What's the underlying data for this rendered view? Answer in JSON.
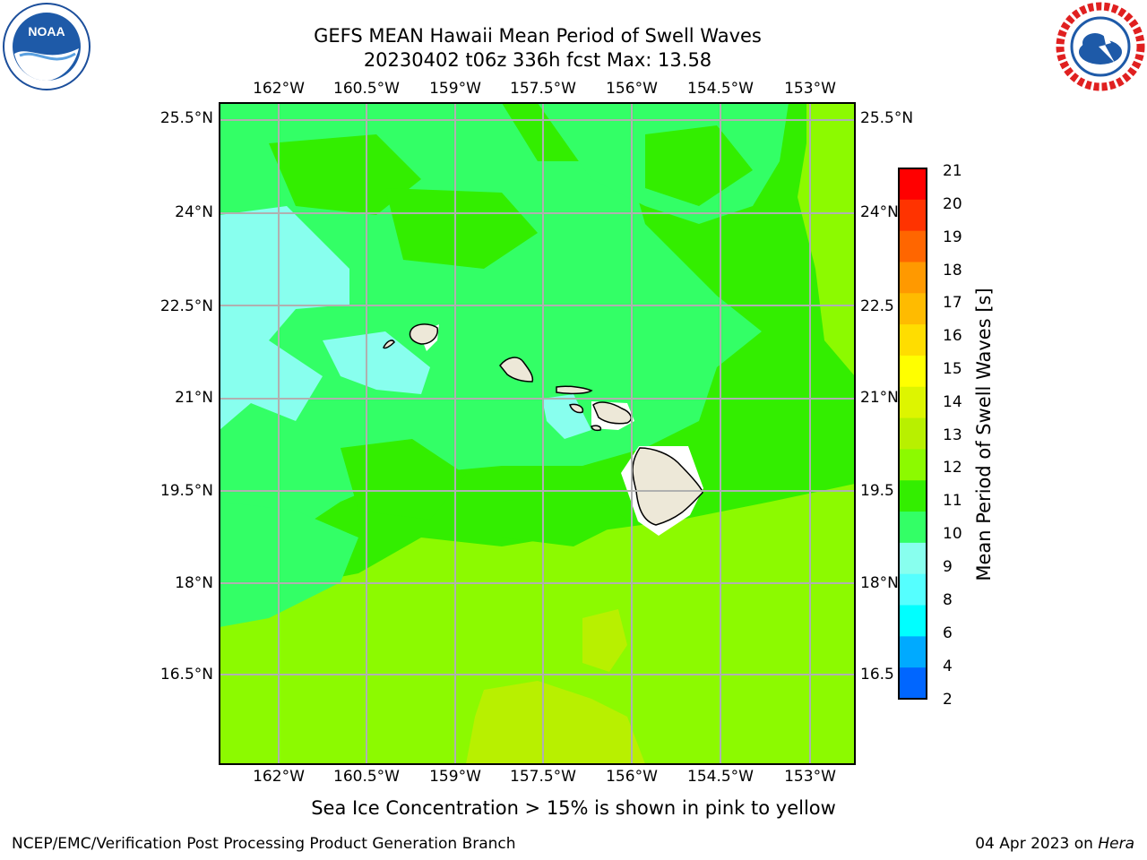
{
  "header": {
    "title_line1": "GEFS MEAN Hawaii Mean Period of Swell Waves",
    "title_line2": "20230402 t06z 336h fcst   Max: 13.58"
  },
  "logos": {
    "left": {
      "icon": "noaa-logo",
      "text": "NOAA"
    },
    "right": {
      "icon": "nws-logo",
      "text": "NATIONAL WEATHER SERVICE"
    }
  },
  "map": {
    "lon_labels": [
      "162°W",
      "160.5°W",
      "159°W",
      "157.5°W",
      "156°W",
      "154.5°W",
      "153°W"
    ],
    "lat_labels_left": [
      "25.5°N",
      "24°N",
      "22.5°N",
      "21°N",
      "19.5°N",
      "18°N",
      "16.5°N"
    ],
    "lat_labels_right": [
      "25.5°N",
      "24°N",
      "22.5",
      "21°N",
      "19.5",
      "18°N",
      "16.5"
    ],
    "land_color": "#ede8d8",
    "grid_color": "#b0b0b0"
  },
  "colorbar": {
    "label": "Mean Period of Swell Waves [s]",
    "ticks": [
      "21",
      "20",
      "19",
      "18",
      "17",
      "16",
      "15",
      "14",
      "13",
      "12",
      "11",
      "10",
      "9",
      "8",
      "6",
      "4",
      "2"
    ],
    "colors_top_to_bottom": [
      "#ff0000",
      "#ff3300",
      "#ff6600",
      "#ff9900",
      "#ffbb00",
      "#ffdd00",
      "#ffff00",
      "#ddf500",
      "#b8f000",
      "#8cfa00",
      "#33ee00",
      "#33ff66",
      "#88ffee",
      "#55ffff",
      "#00ffff",
      "#00aaff",
      "#0066ff",
      "#0000ff"
    ]
  },
  "footer": {
    "note": "Sea Ice Concentration > 15% is shown in pink to yellow",
    "left": "NCEP/EMC/Verification Post Processing Product Generation Branch",
    "right_date": "04 Apr 2023 on ",
    "right_host": "Hera"
  }
}
